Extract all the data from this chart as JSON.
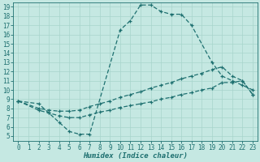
{
  "xlabel": "Humidex (Indice chaleur)",
  "xlim": [
    -0.5,
    23.5
  ],
  "ylim": [
    4.5,
    19.5
  ],
  "xticks": [
    0,
    1,
    2,
    3,
    4,
    5,
    6,
    7,
    8,
    9,
    10,
    11,
    12,
    13,
    14,
    15,
    16,
    17,
    18,
    19,
    20,
    21,
    22,
    23
  ],
  "yticks": [
    5,
    6,
    7,
    8,
    9,
    10,
    11,
    12,
    13,
    14,
    15,
    16,
    17,
    18,
    19
  ],
  "bg_color": "#c5e8e2",
  "grid_color": "#a8d4cc",
  "line_color": "#1e7070",
  "line1_x": [
    0,
    2,
    3,
    4,
    5,
    6,
    7,
    10,
    11,
    12,
    13,
    14,
    15,
    16,
    17,
    19,
    20,
    21,
    22,
    23
  ],
  "line1_y": [
    8.8,
    8.5,
    7.5,
    6.5,
    5.5,
    5.2,
    5.2,
    16.5,
    17.5,
    19.2,
    19.2,
    18.5,
    18.2,
    18.2,
    17.0,
    13.0,
    11.5,
    11.0,
    10.5,
    10.0
  ],
  "line2_x": [
    0,
    2,
    3,
    4,
    5,
    6,
    7,
    8,
    9,
    10,
    11,
    12,
    13,
    14,
    15,
    16,
    17,
    18,
    19,
    20,
    21,
    22,
    23
  ],
  "line2_y": [
    8.8,
    8.0,
    7.8,
    7.7,
    7.7,
    7.8,
    8.2,
    8.5,
    8.8,
    9.2,
    9.5,
    9.8,
    10.2,
    10.5,
    10.8,
    11.2,
    11.5,
    11.8,
    12.2,
    12.5,
    11.5,
    11.0,
    9.5
  ],
  "line3_x": [
    0,
    2,
    3,
    4,
    5,
    6,
    7,
    8,
    9,
    10,
    11,
    12,
    13,
    14,
    15,
    16,
    17,
    18,
    19,
    20,
    21,
    22,
    23
  ],
  "line3_y": [
    8.8,
    7.8,
    7.5,
    7.2,
    7.0,
    7.0,
    7.3,
    7.6,
    7.8,
    8.1,
    8.3,
    8.5,
    8.7,
    9.0,
    9.2,
    9.5,
    9.7,
    10.0,
    10.2,
    10.8,
    10.8,
    11.0,
    9.5
  ],
  "marker_size": 3,
  "line_width": 0.9,
  "font_size_tick": 5.5,
  "font_size_xlabel": 6.5
}
